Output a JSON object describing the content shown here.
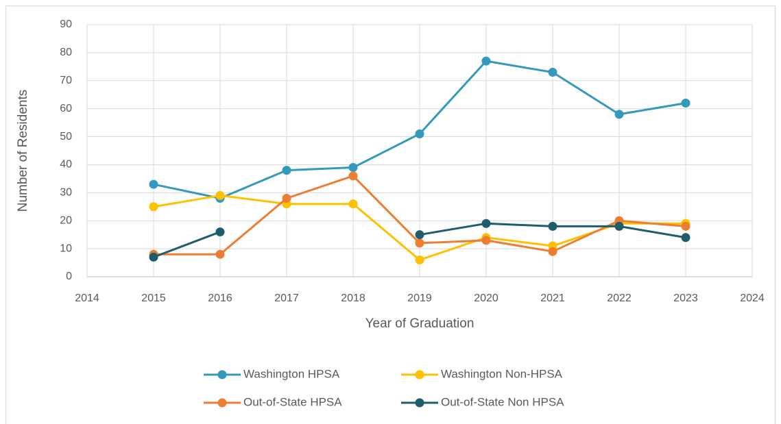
{
  "chart_data": {
    "type": "line",
    "xlabel": "Year of Graduation",
    "ylabel": "Number of Residents",
    "x": [
      2015,
      2016,
      2017,
      2018,
      2019,
      2020,
      2021,
      2022,
      2023
    ],
    "series": [
      {
        "name": "Washington HPSA",
        "color": "#3399bd",
        "values": [
          33,
          28,
          38,
          39,
          51,
          77,
          73,
          58,
          62
        ]
      },
      {
        "name": "Washington Non-HPSA",
        "color": "#ffc000",
        "values": [
          25,
          29,
          26,
          26,
          6,
          14,
          11,
          19,
          19
        ]
      },
      {
        "name": "Out-of-State HPSA",
        "color": "#ed7d31",
        "values": [
          8,
          8,
          28,
          36,
          12,
          13,
          9,
          20,
          18
        ]
      },
      {
        "name": "Out-of-State Non HPSA",
        "color": "#1f5c6e",
        "values": [
          7,
          16,
          null,
          null,
          15,
          19,
          18,
          18,
          14
        ]
      }
    ],
    "xlim": [
      2014,
      2024
    ],
    "xticks": [
      2014,
      2015,
      2016,
      2017,
      2018,
      2019,
      2020,
      2021,
      2022,
      2023,
      2024
    ],
    "ylim": [
      0,
      90
    ],
    "yticks": [
      0,
      10,
      20,
      30,
      40,
      50,
      60,
      70,
      80,
      90
    ],
    "grid": true,
    "legend": "bottom"
  }
}
